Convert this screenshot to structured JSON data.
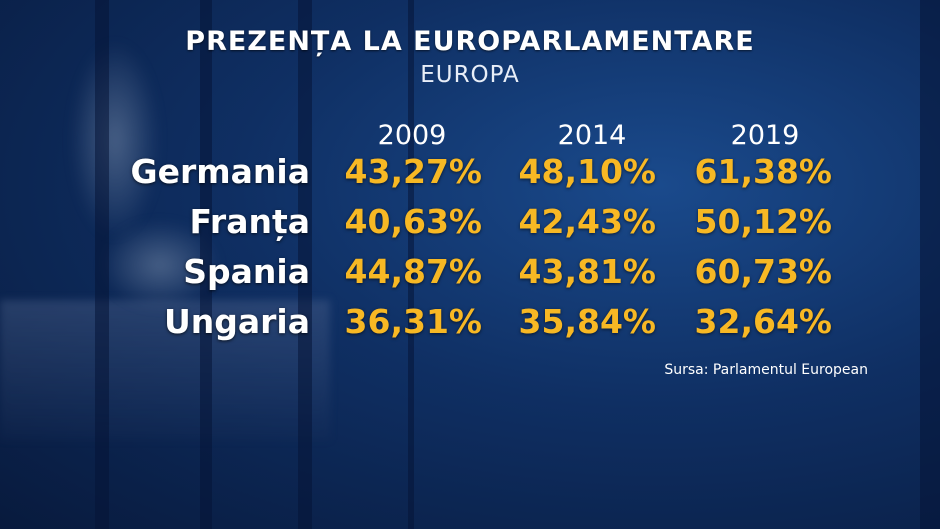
{
  "title": "PREZENȚA LA EUROPARLAMENTARE",
  "subtitle": "EUROPA",
  "source": "Sursa: Parlamentul European",
  "colors": {
    "value": "#f7b824",
    "label": "#ffffff",
    "background": "#0f2f63"
  },
  "chart_data": {
    "type": "table",
    "title": "PREZENȚA LA EUROPARLAMENTARE",
    "subtitle": "EUROPA",
    "columns": [
      "2009",
      "2014",
      "2019"
    ],
    "rows": [
      {
        "country": "Germania",
        "values": [
          "43,27%",
          "48,10%",
          "61,38%"
        ],
        "numeric": [
          43.27,
          48.1,
          61.38
        ]
      },
      {
        "country": "Franța",
        "values": [
          "40,63%",
          "42,43%",
          "50,12%"
        ],
        "numeric": [
          40.63,
          42.43,
          50.12
        ]
      },
      {
        "country": "Spania",
        "values": [
          "44,87%",
          "43,81%",
          "60,73%"
        ],
        "numeric": [
          44.87,
          43.81,
          60.73
        ]
      },
      {
        "country": "Ungaria",
        "values": [
          "36,31%",
          "35,84%",
          "32,64%"
        ],
        "numeric": [
          36.31,
          35.84,
          32.64
        ]
      }
    ],
    "source": "Sursa: Parlamentul European"
  }
}
